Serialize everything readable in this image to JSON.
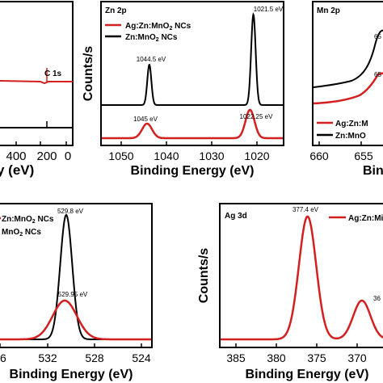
{
  "colors": {
    "ag": "#d31f1f",
    "zn": "#000000"
  },
  "panels": {
    "survey": {
      "xlabel": "y (eV)",
      "ticks": [
        "400",
        "200",
        "0"
      ],
      "annotation": "C 1s"
    },
    "zn": {
      "title": "Zn 2p",
      "ylabel": "Counts/s",
      "xlabel": "Binding Energy (eV)",
      "legend": [
        "Ag:Zn:MnO2 NCs",
        "Zn:MnO2 NCs"
      ],
      "ticks": [
        "1050",
        "1040",
        "1030",
        "1020"
      ],
      "labels": [
        "1021.5 eV",
        "1044.5 eV",
        "1045 eV",
        "1022.25 eV"
      ]
    },
    "mn": {
      "title": "Mn 2p",
      "xlabel": "Bin",
      "legend": [
        "Ag:Zn:M",
        "Zn:MnO"
      ],
      "ticks": [
        "660",
        "655"
      ],
      "labels": [
        "65",
        "65"
      ]
    },
    "o": {
      "xlabel": "Binding Energy (eV)",
      "legend": [
        "Zn:MnO2 NCs",
        "MnO2 NCs"
      ],
      "ticks": [
        "36",
        "532",
        "528",
        "524"
      ],
      "labels": [
        "529.8 eV",
        "529.95 eV"
      ]
    },
    "ag": {
      "title": "Ag 3d",
      "ylabel": "Counts/s",
      "xlabel": "Binding Energy (eV)",
      "legend": [
        "Ag:Zn:Mi"
      ],
      "ticks": [
        "385",
        "380",
        "375",
        "370"
      ],
      "labels": [
        "377.4 eV",
        "36"
      ]
    }
  },
  "chart_data": [
    {
      "type": "line",
      "title": "",
      "xlabel": "y (eV)",
      "ylabel": "",
      "x_ticks": [
        400,
        200,
        0
      ],
      "series": [
        {
          "name": "",
          "note": "survey trace with C 1s feature near 285 eV"
        }
      ]
    },
    {
      "type": "line",
      "title": "Zn 2p",
      "xlabel": "Binding Energy (eV)",
      "ylabel": "Counts/s",
      "xlim": [
        1055,
        1015
      ],
      "x_ticks": [
        1050,
        1040,
        1030,
        1020
      ],
      "series": [
        {
          "name": "Ag:Zn:MnO2 NCs",
          "peaks": [
            1045,
            1022.25
          ]
        },
        {
          "name": "Zn:MnO2 NCs",
          "peaks": [
            1044.5,
            1021.5
          ]
        }
      ]
    },
    {
      "type": "line",
      "title": "Mn 2p",
      "xlabel": "Bin",
      "ylabel": "",
      "x_ticks": [
        660,
        655
      ],
      "series": [
        {
          "name": "Ag:Zn:M"
        },
        {
          "name": "Zn:MnO"
        }
      ]
    },
    {
      "type": "line",
      "title": "",
      "xlabel": "Binding Energy (eV)",
      "ylabel": "",
      "xlim": [
        537,
        521
      ],
      "x_ticks": [
        532,
        528,
        524
      ],
      "series": [
        {
          "name": "Zn:MnO2 NCs",
          "peaks": [
            529.95
          ]
        },
        {
          "name": "MnO2 NCs",
          "peaks": [
            529.8
          ]
        }
      ]
    },
    {
      "type": "line",
      "title": "Ag 3d",
      "xlabel": "Binding Energy (eV)",
      "ylabel": "Counts/s",
      "xlim": [
        387,
        368
      ],
      "x_ticks": [
        385,
        380,
        375,
        370
      ],
      "series": [
        {
          "name": "Ag:Zn:Mi",
          "peaks": [
            377.4
          ]
        }
      ]
    }
  ]
}
